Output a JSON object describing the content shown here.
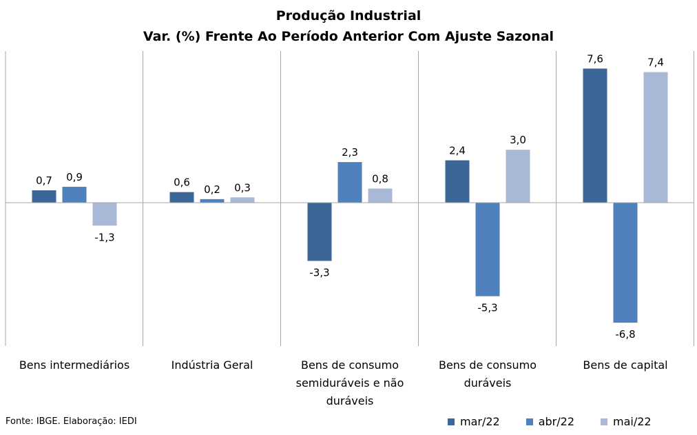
{
  "chart_data": {
    "type": "bar",
    "title": "Produção Industrial",
    "subtitle": "Var. (%) Frente Ao Período Anterior Com Ajuste Sazonal",
    "categories": [
      [
        "Bens intermediários"
      ],
      [
        "Indústria Geral"
      ],
      [
        "Bens de consumo",
        "semiduráveis e não",
        "duráveis"
      ],
      [
        "Bens de consumo",
        "duráveis"
      ],
      [
        "Bens de capital"
      ]
    ],
    "series": [
      {
        "name": "mar/22",
        "color": "#3c6698",
        "values": [
          0.7,
          0.6,
          -3.3,
          2.4,
          7.6
        ],
        "labels": [
          "0,7",
          "0,6",
          "-3,3",
          "2,4",
          "7,6"
        ]
      },
      {
        "name": "abr/22",
        "color": "#4f81bd",
        "values": [
          0.9,
          0.2,
          2.3,
          -5.3,
          -6.8
        ],
        "labels": [
          "0,9",
          "0,2",
          "2,3",
          "-5,3",
          "-6,8"
        ]
      },
      {
        "name": "mai/22",
        "color": "#a9b8d6",
        "values": [
          -1.3,
          0.3,
          0.8,
          3.0,
          7.4
        ],
        "labels": [
          "-1,3",
          "0,3",
          "0,8",
          "3,0",
          "7,4"
        ]
      }
    ],
    "ylim": [
      -8,
      9
    ],
    "grid": false,
    "legend_position": "bottom-right"
  },
  "source": "Fonte: IBGE. Elaboração: IEDI"
}
